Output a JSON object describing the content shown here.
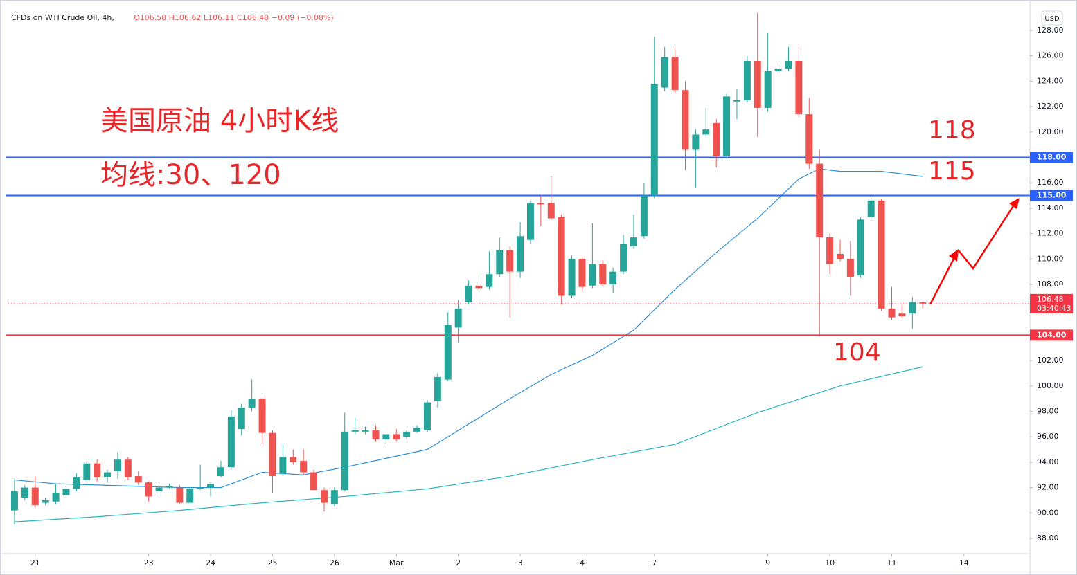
{
  "chart_data": {
    "type": "candlestick",
    "title": "CFDs on WTI Crude Oil, 4h,",
    "ohlc_label": "O106.58 H106.62 L106.11 C106.48 −0.09 (−0.08%)",
    "currency": "USD",
    "annotations": [
      "美国原油 4小时K线",
      "均线:30、120",
      "118",
      "115",
      "104"
    ],
    "up_color": "#26a69a",
    "down_color": "#ef5350",
    "open": [
      90.2,
      91.2,
      92.0,
      90.8,
      90.9,
      91.4,
      91.9,
      92.6,
      93.9,
      92.8,
      93.3,
      94.2,
      92.9,
      92.4,
      91.7,
      92.0,
      92.0,
      90.8,
      91.9,
      92.0,
      92.9,
      93.6,
      96.6,
      98.3,
      99.0,
      96.3,
      93.1,
      94.4,
      94.1,
      93.2,
      91.8,
      90.7,
      91.8,
      96.4,
      96.4,
      96.5,
      95.8,
      96.2,
      96.0,
      96.4,
      96.5,
      98.8,
      100.5,
      104.6,
      106.6,
      107.9,
      107.8,
      108.8,
      110.7,
      109.0,
      111.5,
      114.4,
      114.4,
      113.3,
      107.1,
      110.0,
      107.9,
      109.6,
      108.0,
      109.0,
      111.0,
      111.8,
      115.0,
      123.5,
      125.9,
      123.3,
      118.6,
      119.8,
      120.7,
      118.1,
      122.4,
      122.5,
      125.6,
      121.9,
      124.8,
      125.0,
      125.6,
      121.4,
      117.5,
      111.7,
      110.4,
      110.0,
      108.7,
      113.3,
      114.6,
      106.1,
      105.7,
      105.7,
      106.58
    ],
    "high": [
      92.7,
      92.2,
      92.9,
      91.2,
      92.3,
      92.1,
      93.1,
      94.0,
      94.2,
      93.4,
      94.8,
      94.4,
      93.3,
      92.5,
      92.2,
      92.3,
      92.2,
      92.0,
      93.8,
      92.4,
      94.1,
      98.1,
      98.6,
      100.5,
      99.1,
      96.5,
      95.4,
      95.0,
      95.0,
      93.4,
      92.0,
      92.0,
      97.9,
      97.5,
      96.8,
      96.9,
      96.3,
      96.6,
      96.5,
      96.9,
      98.9,
      101.0,
      105.8,
      106.8,
      108.3,
      108.9,
      110.6,
      111.7,
      111.0,
      112.9,
      114.6,
      115.0,
      116.5,
      113.5,
      110.3,
      110.2,
      112.8,
      109.9,
      109.3,
      111.9,
      113.5,
      116.0,
      127.5,
      126.7,
      126.6,
      124.0,
      120.2,
      121.9,
      121.0,
      123.0,
      123.4,
      126.0,
      129.4,
      127.8,
      125.3,
      126.7,
      126.7,
      122.7,
      118.6,
      112.0,
      111.5,
      111.4,
      113.3,
      114.8,
      114.7,
      107.8,
      106.4,
      107.0,
      106.62
    ],
    "low": [
      89.1,
      91.0,
      90.4,
      90.6,
      90.7,
      91.2,
      91.7,
      92.4,
      92.5,
      92.4,
      92.7,
      92.6,
      92.2,
      90.9,
      91.5,
      91.9,
      90.7,
      90.7,
      91.8,
      91.3,
      92.8,
      93.4,
      96.1,
      98.0,
      95.4,
      91.6,
      92.9,
      93.8,
      93.0,
      91.8,
      90.1,
      90.5,
      91.7,
      96.2,
      96.2,
      95.6,
      95.2,
      95.6,
      95.8,
      96.3,
      96.4,
      98.3,
      100.4,
      103.4,
      106.4,
      107.5,
      107.6,
      108.6,
      105.4,
      108.5,
      111.2,
      112.6,
      113.0,
      106.4,
      106.9,
      107.4,
      107.7,
      107.8,
      107.3,
      108.8,
      110.8,
      111.6,
      114.8,
      123.2,
      123.0,
      117.0,
      115.6,
      119.6,
      117.2,
      117.9,
      121.0,
      122.3,
      119.6,
      121.6,
      124.6,
      124.8,
      121.2,
      117.1,
      103.9,
      108.8,
      109.8,
      107.1,
      108.5,
      113.0,
      105.9,
      105.2,
      105.3,
      104.5,
      106.11
    ],
    "close": [
      91.7,
      92.0,
      90.6,
      91.0,
      91.6,
      91.9,
      92.8,
      93.9,
      92.8,
      93.2,
      94.2,
      92.8,
      92.4,
      91.3,
      92.0,
      92.1,
      90.8,
      91.9,
      92.0,
      92.3,
      93.6,
      97.6,
      98.3,
      99.0,
      96.3,
      92.9,
      94.4,
      94.0,
      93.2,
      91.8,
      90.8,
      91.8,
      96.4,
      96.5,
      96.5,
      95.8,
      96.2,
      95.8,
      96.4,
      96.7,
      98.7,
      100.7,
      104.8,
      106.1,
      107.9,
      107.7,
      108.8,
      110.7,
      109.0,
      111.8,
      114.4,
      114.3,
      113.2,
      107.1,
      110.0,
      107.8,
      109.6,
      108.0,
      109.0,
      111.2,
      111.7,
      115.0,
      123.8,
      125.9,
      123.3,
      118.6,
      119.8,
      120.2,
      118.1,
      122.8,
      122.5,
      125.6,
      121.9,
      124.8,
      125.0,
      125.6,
      121.4,
      117.5,
      111.7,
      109.6,
      110.0,
      108.6,
      113.1,
      114.6,
      106.1,
      105.4,
      105.5,
      106.6,
      106.48
    ],
    "ma_lines": [
      {
        "color": "#2f8fd8",
        "x": [
          0,
          4,
          8,
          12,
          16,
          20,
          24,
          28,
          32,
          36,
          40,
          44,
          48,
          52,
          56,
          60,
          64,
          68,
          72,
          76,
          78,
          80,
          84,
          88
        ],
        "values": [
          92.6,
          92.3,
          92.2,
          92.1,
          92.0,
          92.0,
          93.2,
          93.0,
          93.6,
          94.3,
          95.0,
          97.0,
          99.0,
          100.9,
          102.4,
          104.4,
          107.6,
          110.5,
          113.2,
          116.3,
          117.1,
          116.9,
          116.9,
          116.5
        ]
      },
      {
        "color": "#26b5c0",
        "x": [
          0,
          8,
          16,
          24,
          32,
          40,
          48,
          56,
          64,
          72,
          80,
          88
        ],
        "values": [
          89.3,
          89.7,
          90.2,
          90.8,
          91.3,
          91.9,
          92.9,
          94.2,
          95.4,
          97.9,
          100.0,
          101.5
        ]
      }
    ],
    "price_lines": [
      {
        "value": 118,
        "label": "118.00",
        "color": "#2962ff"
      },
      {
        "value": 115,
        "label": "115.00",
        "color": "#2962ff"
      },
      {
        "value": 104,
        "label": "104.00",
        "color": "#f23645"
      }
    ],
    "last_price": {
      "value": 106.48,
      "label": "106.48",
      "timer": "03:40:43",
      "color": "#f23645"
    },
    "xlim": [
      -0.87,
      98.39
    ],
    "xticks": [
      {
        "value": 2,
        "label": "21"
      },
      {
        "value": 13,
        "label": "23"
      },
      {
        "value": 19,
        "label": "24"
      },
      {
        "value": 25,
        "label": "25"
      },
      {
        "value": 31,
        "label": "26"
      },
      {
        "value": 37,
        "label": "Mar"
      },
      {
        "value": 43,
        "label": "2"
      },
      {
        "value": 49,
        "label": "3"
      },
      {
        "value": 55,
        "label": "4"
      },
      {
        "value": 62,
        "label": "7"
      },
      {
        "value": 73,
        "label": "9"
      },
      {
        "value": 79,
        "label": "10"
      },
      {
        "value": 85,
        "label": "11"
      },
      {
        "value": 92,
        "label": "14"
      }
    ],
    "ylim": [
      86.8,
      129.85
    ],
    "yticks": [
      {
        "value": 88,
        "label": "88.00"
      },
      {
        "value": 90,
        "label": "90.00"
      },
      {
        "value": 92,
        "label": "92.00"
      },
      {
        "value": 94,
        "label": "94.00"
      },
      {
        "value": 96,
        "label": "96.00"
      },
      {
        "value": 98,
        "label": "98.00"
      },
      {
        "value": 100,
        "label": "100.00"
      },
      {
        "value": 102,
        "label": "102.00"
      },
      {
        "value": 104,
        "label": "104.00"
      },
      {
        "value": 106,
        "label": "106.00"
      },
      {
        "value": 108,
        "label": "108.00"
      },
      {
        "value": 110,
        "label": "110.00"
      },
      {
        "value": 112,
        "label": "112.00"
      },
      {
        "value": 114,
        "label": "114.00"
      },
      {
        "value": 116,
        "label": "116.00"
      },
      {
        "value": 118,
        "label": "118.00"
      },
      {
        "value": 120,
        "label": "120.00"
      },
      {
        "value": 122,
        "label": "122.00"
      },
      {
        "value": 124,
        "label": "124.00"
      },
      {
        "value": 126,
        "label": "126.00"
      },
      {
        "value": 128,
        "label": "128.00"
      }
    ]
  }
}
